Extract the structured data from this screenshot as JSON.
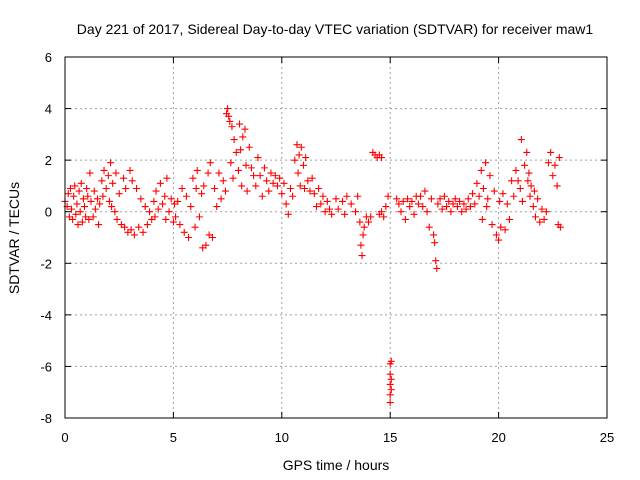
{
  "chart_data": {
    "type": "scatter",
    "title": "Day 221 of 2017, Sidereal Day-to-day VTEC variation (SDTVAR) for receiver maw1",
    "xlabel": "GPS time / hours",
    "ylabel": "SDTVAR / TECUs",
    "xlim": [
      0,
      25
    ],
    "ylim": [
      -8,
      6
    ],
    "xticks": [
      0,
      5,
      10,
      15,
      20,
      25
    ],
    "yticks": [
      -8,
      -6,
      -4,
      -2,
      0,
      2,
      4,
      6
    ],
    "xtick_labels": [
      "0",
      "5",
      "10",
      "15",
      "20",
      "25"
    ],
    "ytick_labels": [
      "-8",
      "-6",
      "-4",
      "-2",
      "0",
      "2",
      "4",
      "6"
    ],
    "grid": true,
    "marker": "+",
    "color": "#ff0000",
    "series": [
      {
        "name": "SDTVAR",
        "points": [
          [
            0.0,
            0.4
          ],
          [
            0.1,
            0.2
          ],
          [
            0.15,
            0.7
          ],
          [
            0.2,
            -0.2
          ],
          [
            0.25,
            0.9
          ],
          [
            0.3,
            0.1
          ],
          [
            0.35,
            -0.3
          ],
          [
            0.4,
            0.6
          ],
          [
            0.45,
            1.0
          ],
          [
            0.5,
            -0.1
          ],
          [
            0.55,
            0.3
          ],
          [
            0.6,
            -0.5
          ],
          [
            0.65,
            0.8
          ],
          [
            0.7,
            0.0
          ],
          [
            0.75,
            1.1
          ],
          [
            0.8,
            -0.4
          ],
          [
            0.85,
            0.5
          ],
          [
            0.9,
            0.2
          ],
          [
            0.95,
            -0.2
          ],
          [
            1.0,
            0.9
          ],
          [
            1.05,
            0.6
          ],
          [
            1.1,
            -0.3
          ],
          [
            1.15,
            1.5
          ],
          [
            1.2,
            0.4
          ],
          [
            1.3,
            -0.2
          ],
          [
            1.35,
            0.8
          ],
          [
            1.4,
            0.1
          ],
          [
            1.5,
            0.5
          ],
          [
            1.55,
            -0.5
          ],
          [
            1.6,
            0.3
          ],
          [
            1.7,
            1.2
          ],
          [
            1.75,
            0.6
          ],
          [
            1.8,
            1.6
          ],
          [
            1.9,
            0.9
          ],
          [
            2.0,
            1.4
          ],
          [
            2.05,
            0.4
          ],
          [
            2.1,
            1.9
          ],
          [
            2.15,
            0.2
          ],
          [
            2.2,
            1.1
          ],
          [
            2.3,
            0.0
          ],
          [
            2.35,
            1.5
          ],
          [
            2.4,
            -0.3
          ],
          [
            2.5,
            0.7
          ],
          [
            2.6,
            -0.5
          ],
          [
            2.7,
            1.3
          ],
          [
            2.75,
            -0.6
          ],
          [
            2.8,
            0.9
          ],
          [
            2.9,
            -0.8
          ],
          [
            3.0,
            1.6
          ],
          [
            3.05,
            -0.7
          ],
          [
            3.1,
            1.2
          ],
          [
            3.2,
            -0.9
          ],
          [
            3.3,
            0.9
          ],
          [
            3.4,
            -0.6
          ],
          [
            3.5,
            0.5
          ],
          [
            3.6,
            -0.8
          ],
          [
            3.7,
            0.2
          ],
          [
            3.8,
            -0.5
          ],
          [
            3.9,
            0.0
          ],
          [
            4.0,
            -0.3
          ],
          [
            4.1,
            0.4
          ],
          [
            4.15,
            -0.2
          ],
          [
            4.2,
            0.8
          ],
          [
            4.3,
            0.1
          ],
          [
            4.4,
            1.1
          ],
          [
            4.5,
            0.3
          ],
          [
            4.6,
            0.6
          ],
          [
            4.65,
            -0.3
          ],
          [
            4.7,
            1.3
          ],
          [
            4.8,
            0.0
          ],
          [
            4.9,
            0.5
          ],
          [
            5.0,
            -0.4
          ],
          [
            5.05,
            0.3
          ],
          [
            5.1,
            -0.2
          ],
          [
            5.2,
            0.4
          ],
          [
            5.3,
            -0.5
          ],
          [
            5.4,
            0.9
          ],
          [
            5.5,
            -0.8
          ],
          [
            5.6,
            0.6
          ],
          [
            5.7,
            -1.0
          ],
          [
            5.8,
            0.2
          ],
          [
            5.9,
            1.3
          ],
          [
            6.0,
            -0.6
          ],
          [
            6.05,
            0.9
          ],
          [
            6.1,
            1.6
          ],
          [
            6.2,
            -0.2
          ],
          [
            6.3,
            0.7
          ],
          [
            6.35,
            -1.4
          ],
          [
            6.4,
            1.0
          ],
          [
            6.5,
            -1.3
          ],
          [
            6.6,
            1.5
          ],
          [
            6.65,
            -0.9
          ],
          [
            6.7,
            1.9
          ],
          [
            6.8,
            -1.0
          ],
          [
            6.9,
            0.9
          ],
          [
            7.0,
            0.2
          ],
          [
            7.1,
            1.5
          ],
          [
            7.2,
            0.5
          ],
          [
            7.3,
            1.2
          ],
          [
            7.4,
            0.8
          ],
          [
            7.45,
            3.8
          ],
          [
            7.5,
            4.0
          ],
          [
            7.55,
            3.7
          ],
          [
            7.6,
            3.5
          ],
          [
            7.65,
            1.9
          ],
          [
            7.7,
            3.3
          ],
          [
            7.75,
            1.3
          ],
          [
            7.8,
            2.8
          ],
          [
            7.9,
            2.3
          ],
          [
            8.0,
            1.6
          ],
          [
            8.05,
            3.4
          ],
          [
            8.1,
            2.4
          ],
          [
            8.15,
            1.0
          ],
          [
            8.2,
            2.9
          ],
          [
            8.3,
            3.2
          ],
          [
            8.35,
            1.8
          ],
          [
            8.4,
            0.8
          ],
          [
            8.5,
            2.5
          ],
          [
            8.6,
            1.7
          ],
          [
            8.7,
            1.4
          ],
          [
            8.8,
            1.0
          ],
          [
            8.9,
            2.1
          ],
          [
            9.0,
            1.4
          ],
          [
            9.1,
            0.6
          ],
          [
            9.2,
            1.7
          ],
          [
            9.3,
            1.2
          ],
          [
            9.4,
            0.8
          ],
          [
            9.5,
            1.5
          ],
          [
            9.6,
            1.1
          ],
          [
            9.7,
            1.4
          ],
          [
            9.8,
            1.0
          ],
          [
            9.9,
            1.3
          ],
          [
            10.0,
            0.7
          ],
          [
            10.1,
            1.1
          ],
          [
            10.2,
            0.3
          ],
          [
            10.3,
            -0.1
          ],
          [
            10.4,
            0.9
          ],
          [
            10.5,
            0.6
          ],
          [
            10.6,
            2.0
          ],
          [
            10.7,
            2.6
          ],
          [
            10.75,
            1.5
          ],
          [
            10.8,
            2.2
          ],
          [
            10.85,
            1.0
          ],
          [
            10.9,
            2.5
          ],
          [
            11.0,
            1.8
          ],
          [
            11.05,
            0.9
          ],
          [
            11.1,
            2.1
          ],
          [
            11.2,
            1.2
          ],
          [
            11.3,
            0.8
          ],
          [
            11.4,
            1.3
          ],
          [
            11.5,
            0.7
          ],
          [
            11.6,
            0.2
          ],
          [
            11.7,
            0.9
          ],
          [
            11.8,
            0.3
          ],
          [
            11.9,
            0.6
          ],
          [
            12.0,
            0.0
          ],
          [
            12.1,
            0.4
          ],
          [
            12.2,
            0.1
          ],
          [
            12.3,
            -0.1
          ],
          [
            12.5,
            0.5
          ],
          [
            12.6,
            0.1
          ],
          [
            12.8,
            0.4
          ],
          [
            12.9,
            -0.1
          ],
          [
            13.0,
            0.6
          ],
          [
            13.2,
            0.3
          ],
          [
            13.4,
            0.0
          ],
          [
            13.5,
            0.6
          ],
          [
            13.6,
            -0.4
          ],
          [
            13.65,
            -1.3
          ],
          [
            13.7,
            -1.7
          ],
          [
            13.75,
            -0.9
          ],
          [
            13.8,
            -0.6
          ],
          [
            13.9,
            -0.2
          ],
          [
            14.0,
            -0.4
          ],
          [
            14.1,
            -0.2
          ],
          [
            14.2,
            2.3
          ],
          [
            14.3,
            2.2
          ],
          [
            14.4,
            2.1
          ],
          [
            14.5,
            2.2
          ],
          [
            14.6,
            2.1
          ],
          [
            14.5,
            -0.1
          ],
          [
            14.6,
            0.0
          ],
          [
            14.7,
            -0.2
          ],
          [
            14.8,
            0.2
          ],
          [
            14.9,
            0.6
          ],
          [
            15.0,
            -5.9
          ],
          [
            15.0,
            -6.3
          ],
          [
            15.0,
            -6.7
          ],
          [
            15.0,
            -7.1
          ],
          [
            15.0,
            -7.4
          ],
          [
            15.05,
            -5.8
          ],
          [
            15.05,
            -6.5
          ],
          [
            15.05,
            -6.9
          ],
          [
            15.3,
            0.5
          ],
          [
            15.4,
            0.3
          ],
          [
            15.5,
            0.0
          ],
          [
            15.6,
            0.4
          ],
          [
            15.7,
            -0.3
          ],
          [
            15.8,
            0.5
          ],
          [
            15.9,
            0.2
          ],
          [
            16.0,
            0.4
          ],
          [
            16.1,
            -0.1
          ],
          [
            16.2,
            0.6
          ],
          [
            16.3,
            0.3
          ],
          [
            16.4,
            0.6
          ],
          [
            16.5,
            0.2
          ],
          [
            16.6,
            0.8
          ],
          [
            16.7,
            0.0
          ],
          [
            16.8,
            -0.6
          ],
          [
            16.9,
            0.5
          ],
          [
            17.0,
            -0.9
          ],
          [
            17.05,
            -1.2
          ],
          [
            17.1,
            -1.9
          ],
          [
            17.15,
            -2.2
          ],
          [
            17.2,
            0.3
          ],
          [
            17.3,
            0.5
          ],
          [
            17.4,
            0.1
          ],
          [
            17.5,
            0.6
          ],
          [
            17.6,
            0.2
          ],
          [
            17.7,
            0.4
          ],
          [
            17.8,
            0.0
          ],
          [
            17.9,
            0.3
          ],
          [
            18.0,
            0.5
          ],
          [
            18.1,
            0.2
          ],
          [
            18.2,
            0.4
          ],
          [
            18.3,
            0.0
          ],
          [
            18.4,
            0.3
          ],
          [
            18.5,
            0.1
          ],
          [
            18.6,
            0.5
          ],
          [
            18.7,
            0.2
          ],
          [
            18.8,
            0.7
          ],
          [
            18.9,
            0.3
          ],
          [
            19.0,
            1.1
          ],
          [
            19.1,
            0.6
          ],
          [
            19.2,
            1.6
          ],
          [
            19.25,
            -0.3
          ],
          [
            19.3,
            0.9
          ],
          [
            19.4,
            1.9
          ],
          [
            19.45,
            0.2
          ],
          [
            19.5,
            0.5
          ],
          [
            19.6,
            1.4
          ],
          [
            19.7,
            -0.5
          ],
          [
            19.8,
            0.8
          ],
          [
            19.9,
            -0.9
          ],
          [
            20.0,
            -1.1
          ],
          [
            20.05,
            0.4
          ],
          [
            20.1,
            -0.6
          ],
          [
            20.2,
            0.7
          ],
          [
            20.3,
            -0.7
          ],
          [
            20.4,
            0.3
          ],
          [
            20.5,
            -0.3
          ],
          [
            20.6,
            1.2
          ],
          [
            20.7,
            0.6
          ],
          [
            20.8,
            1.6
          ],
          [
            20.9,
            1.2
          ],
          [
            21.0,
            0.9
          ],
          [
            21.05,
            2.8
          ],
          [
            21.1,
            0.4
          ],
          [
            21.2,
            1.8
          ],
          [
            21.3,
            2.3
          ],
          [
            21.35,
            1.2
          ],
          [
            21.4,
            1.5
          ],
          [
            21.45,
            0.6
          ],
          [
            21.5,
            1.0
          ],
          [
            21.6,
            0.2
          ],
          [
            21.65,
            0.8
          ],
          [
            21.7,
            -0.2
          ],
          [
            21.8,
            0.5
          ],
          [
            21.9,
            -0.4
          ],
          [
            22.0,
            0.1
          ],
          [
            22.1,
            -0.3
          ],
          [
            22.2,
            0.0
          ],
          [
            22.3,
            1.9
          ],
          [
            22.4,
            2.3
          ],
          [
            22.5,
            1.4
          ],
          [
            22.6,
            1.8
          ],
          [
            22.7,
            1.0
          ],
          [
            22.75,
            -0.5
          ],
          [
            22.8,
            2.1
          ],
          [
            22.85,
            -0.6
          ]
        ]
      }
    ]
  }
}
